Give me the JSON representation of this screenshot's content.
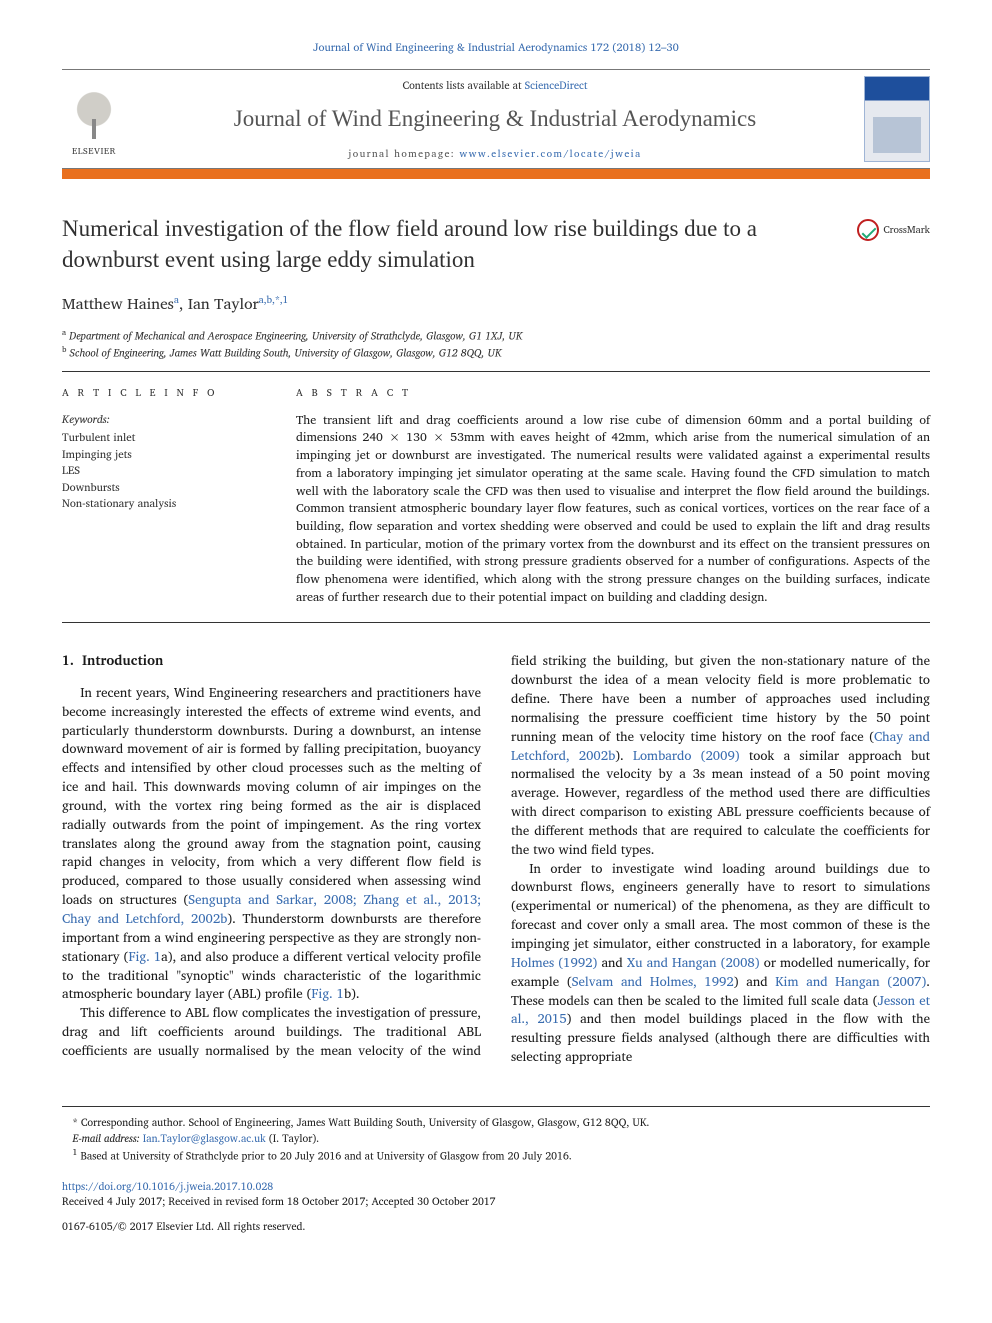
{
  "top_journal_ref": "Journal of Wind Engineering & Industrial Aerodynamics 172 (2018) 12–30",
  "masthead": {
    "publisher_logo_text": "ELSEVIER",
    "contents_prefix": "Contents lists available at ",
    "contents_link": "ScienceDirect",
    "journal_title": "Journal of Wind Engineering & Industrial Aerodynamics",
    "homepage_prefix": "journal homepage: ",
    "homepage_url": "www.elsevier.com/locate/jweia"
  },
  "orange_bar_color": "#e9701e",
  "article": {
    "title": "Numerical investigation of the flow field around low rise buildings due to a downburst event using large eddy simulation",
    "crossmark_label": "CrossMark",
    "authors_html": "Matthew Haines",
    "author1": {
      "name": "Matthew Haines",
      "sup": "a"
    },
    "author2": {
      "name": "Ian Taylor",
      "sup": "a,b,*,1"
    },
    "affiliations": {
      "a": "Department of Mechanical and Aerospace Engineering, University of Strathclyde, Glasgow, G1 1XJ, UK",
      "b": "School of Engineering, James Watt Building South, University of Glasgow, Glasgow, G12 8QQ, UK"
    }
  },
  "info": {
    "head": "A R T I C L E  I N F O",
    "keywords_label": "Keywords:",
    "keywords": [
      "Turbulent inlet",
      "Impinging jets",
      "LES",
      "Downbursts",
      "Non-stationary analysis"
    ]
  },
  "abstract": {
    "head": "A B S T R A C T",
    "text": "The transient lift and drag coefficients around a low rise cube of dimension 60mm and a portal building of dimensions 240 × 130 × 53mm with eaves height of 42mm, which arise from the numerical simulation of an impinging jet or downburst are investigated. The numerical results were validated against a experimental results from a laboratory impinging jet simulator operating at the same scale. Having found the CFD simulation to match well with the laboratory scale the CFD was then used to visualise and interpret the flow field around the buildings. Common transient atmospheric boundary layer flow features, such as conical vortices, vortices on the rear face of a building, flow separation and vortex shedding were observed and could be used to explain the lift and drag results obtained. In particular, motion of the primary vortex from the downburst and its effect on the transient pressures on the building were identified, with strong pressure gradients observed for a number of configurations. Aspects of the flow phenomena were identified, which along with the strong pressure changes on the building surfaces, indicate areas of further research due to their potential impact on building and cladding design."
  },
  "body": {
    "section_number": "1.",
    "section_title": "Introduction",
    "p1": "In recent years, Wind Engineering researchers and practitioners have become increasingly interested the effects of extreme wind events, and particularly thunderstorm downbursts. During a downburst, an intense downward movement of air is formed by falling precipitation, buoyancy effects and intensified by other cloud processes such as the melting of ice and hail. This downwards moving column of air impinges on the ground, with the vortex ring being formed as the air is displaced radially outwards from the point of impingement. As the ring vortex translates along the ground away from the stagnation point, causing rapid changes in velocity, from which a very different flow field is produced, compared to those usually considered when assessing wind loads on structures (",
    "p1_cite1": "Sengupta and Sarkar, 2008; Zhang et al., 2013; Chay and Letchford, 2002b",
    "p1_b": "). Thunderstorm downbursts are therefore important from a wind engineering perspective as they are strongly non-stationary (",
    "p1_cite2": "Fig. 1",
    "p1_c": "a), and also produce a different vertical velocity profile to the traditional \"synoptic\" winds characteristic of the logarithmic atmospheric boundary layer (ABL) profile (",
    "p1_cite3": "Fig. 1",
    "p1_d": "b).",
    "p2": "This difference to ABL flow complicates the investigation of pressure, drag and lift coefficients around buildings. The traditional ABL",
    "p3a": "coefficients are usually normalised by the mean velocity of the wind field striking the building, but given the non-stationary nature of the downburst the idea of a mean velocity field is more problematic to define. There have been a number of approaches used including normalising the pressure coefficient time history by the 50 point running mean of the velocity time history on the roof face (",
    "p3_cite1": "Chay and Letchford, 2002b",
    "p3b": "). ",
    "p3_cite2": "Lombardo (2009)",
    "p3c": " took a similar approach but normalised the velocity by a 3s mean instead of a 50 point moving average. However, regardless of the method used there are difficulties with direct comparison to existing ABL pressure coefficients because of the different methods that are required to calculate the coefficients for the two wind field types.",
    "p4a": "In order to investigate wind loading around buildings due to downburst flows, engineers generally have to resort to simulations (experimental or numerical) of the phenomena, as they are difficult to forecast and cover only a small area. The most common of these is the impinging jet simulator, either constructed in a laboratory, for example ",
    "p4_cite1": "Holmes (1992)",
    "p4b": " and ",
    "p4_cite2": "Xu and Hangan (2008)",
    "p4c": " or modelled numerically, for example (",
    "p4_cite3": "Selvam and Holmes, 1992",
    "p4d": ") and ",
    "p4_cite4": "Kim and Hangan (2007)",
    "p4e": ". These models can then be scaled to the limited full scale data (",
    "p4_cite5": "Jesson et al., 2015",
    "p4f": ") and then model buildings placed in the flow with the resulting pressure fields analysed (although there are difficulties with selecting appropriate"
  },
  "footnotes": {
    "corr": "* Corresponding author. School of Engineering, James Watt Building South, University of Glasgow, Glasgow, G12 8QQ, UK.",
    "email_label": "E-mail address: ",
    "email": "Ian.Taylor@glasgow.ac.uk",
    "email_suffix": " (I. Taylor).",
    "note1": "Based at University of Strathclyde prior to 20 July 2016 and at University of Glasgow from 20 July 2016.",
    "note1_sup": "1"
  },
  "doi": {
    "url": "https://doi.org/10.1016/j.jweia.2017.10.028",
    "history": "Received 4 July 2017; Received in revised form 18 October 2017; Accepted 30 October 2017"
  },
  "bottom": "0167-6105/© 2017 Elsevier Ltd. All rights reserved."
}
